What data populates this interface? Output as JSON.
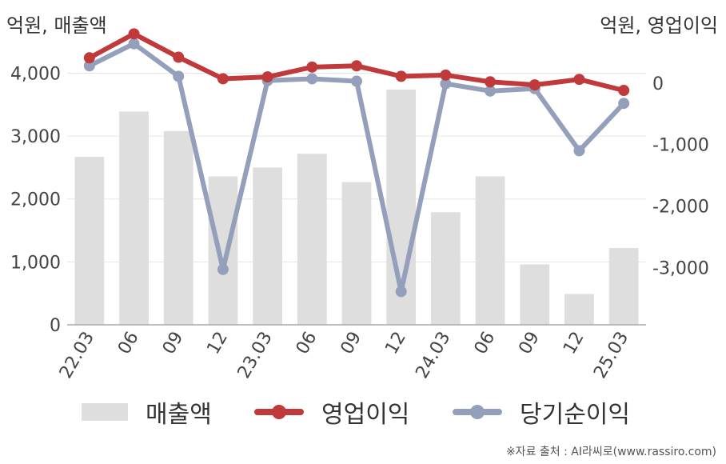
{
  "units": {
    "left": "억원, 매출액",
    "right": "억원, 영업이익"
  },
  "legend": {
    "revenue": "매출액",
    "operating": "영업이익",
    "net": "당기순이익"
  },
  "source": "※자료 출처 : AI라씨로(www.rassiro.com)",
  "colors": {
    "revenue": "#dedede",
    "operating": "#c0393b",
    "net": "#94a0bb",
    "grid": "#e6e6e6",
    "axis": "#aaaaaa"
  },
  "chart_data": {
    "type": "bar+line",
    "categories": [
      "22.03",
      "06",
      "09",
      "12",
      "23.03",
      "06",
      "09",
      "12",
      "24.03",
      "06",
      "09",
      "12",
      "25.03"
    ],
    "left_axis": {
      "ticks": [
        0,
        1000,
        2000,
        3000,
        4000
      ],
      "tick_labels": [
        "0",
        "1,000",
        "2,000",
        "3,000",
        "4,000"
      ],
      "range": [
        0,
        4400
      ]
    },
    "right_axis": {
      "ticks": [
        0,
        -1000,
        -2000,
        -3000
      ],
      "tick_labels": [
        "0",
        "-1,000",
        "-2,000",
        "-3,000"
      ],
      "range": [
        -3930,
        570
      ]
    },
    "series": [
      {
        "name": "매출액",
        "axis": "left",
        "kind": "bar",
        "values": [
          2670,
          3390,
          3080,
          2360,
          2500,
          2720,
          2270,
          3740,
          1790,
          2360,
          960,
          490,
          1220
        ]
      },
      {
        "name": "영업이익",
        "axis": "right",
        "kind": "line",
        "values": [
          410,
          800,
          420,
          70,
          100,
          260,
          280,
          110,
          130,
          20,
          -30,
          60,
          -120
        ]
      },
      {
        "name": "당기순이익",
        "axis": "right",
        "kind": "line",
        "values": [
          280,
          640,
          110,
          -3030,
          40,
          70,
          30,
          -3390,
          -10,
          -130,
          -90,
          -1100,
          -330
        ]
      }
    ],
    "grid": true
  }
}
